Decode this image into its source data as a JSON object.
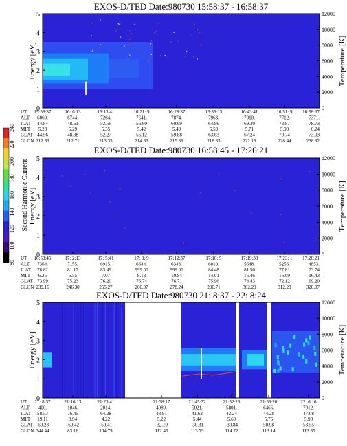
{
  "chart_data": [
    {
      "type": "heatmap",
      "title": "EXOS-D/TED   Date:980730   15:58:37 - 16:58:37",
      "ylabel": "Energy [eV]",
      "y2label": "Temperature [K]",
      "ylim": [
        0,
        5
      ],
      "y2lim": [
        0,
        12000
      ],
      "yticks": [
        "0",
        "1",
        "2",
        "3",
        "4",
        "5"
      ],
      "y2ticks": [
        "0",
        "2000",
        "4000",
        "6000",
        "8000",
        "10000",
        "12000"
      ],
      "orbit_rows": [
        "UT",
        "ALT",
        "ILAT",
        "MLT",
        "GLAT",
        "GLON"
      ],
      "orbit_columns": [
        [
          "15:58:37",
          "6069.",
          "44.84",
          "5.23",
          "44.56",
          "212.39"
        ],
        [
          "16: 6:13",
          "6744.",
          "48.61",
          "5.29",
          "48.38",
          "212.71"
        ],
        [
          "16:13:41",
          "7264.",
          "52.56",
          "5.35",
          "52.27",
          "213.33"
        ],
        [
          "16:21: 9",
          "7641.",
          "56.60",
          "5.42",
          "56.12",
          "214.33"
        ],
        [
          "16:28:37",
          "7874.",
          "60.69",
          "5.49",
          "59.88",
          "215.89"
        ],
        [
          "16:36:13",
          "7963.",
          "64.96",
          "5.59",
          "63.63",
          "218.35"
        ],
        [
          "16:43:41",
          "7910.",
          "69.30",
          "5.71",
          "67.24",
          "222.19"
        ],
        [
          "16:51: 9",
          "7712.",
          "73.87",
          "5.90",
          "70.74",
          "228.44"
        ],
        [
          "16:58:37",
          "7371.",
          "78.73",
          "6.24",
          "73.93",
          "238.92"
        ]
      ]
    },
    {
      "type": "heatmap",
      "title": "EXOS-D/TED   Date:980730   16:58:45 - 17:26:21",
      "ylabel": "Energy [eV]",
      "y2label": "Temperature [K]",
      "ylim": [
        0,
        5
      ],
      "y2lim": [
        0,
        12000
      ],
      "yticks": [
        "0",
        "1",
        "2",
        "3",
        "4",
        "5"
      ],
      "y2ticks": [
        "0",
        "2000",
        "4000",
        "6000",
        "8000",
        "10000",
        "12000"
      ],
      "orbit_rows": [
        "UT",
        "ALT",
        "ILAT",
        "MLT",
        "GLAT",
        "GLON"
      ],
      "orbit_columns": [
        [
          "16:58:45",
          "7364.",
          "78.82",
          "6.25",
          "73.99",
          "239.16"
        ],
        [
          "17: 2:13",
          "7155.",
          "81.17",
          "6.55",
          "75.23",
          "246.30"
        ],
        [
          "17: 5:41",
          "6915.",
          "83.49",
          "7.07",
          "76.20",
          "255.27"
        ],
        [
          "17: 9: 9",
          "6644.",
          "999.00",
          "8.18",
          "76.74",
          "266.07"
        ],
        [
          "17:12:37",
          "6343.",
          "999.00",
          "10.84",
          "76.71",
          "278.24"
        ],
        [
          "17:16: 5",
          "6010.",
          "84.48",
          "14.01",
          "75.96",
          "290.71"
        ],
        [
          "17:19:33",
          "5648.",
          "81.50",
          "15.46",
          "74.43",
          "302.29"
        ],
        [
          "17:23: 1",
          "5256.",
          "77.81",
          "16.09",
          "72.12",
          "312.23"
        ],
        [
          "17:26:21",
          "4853.",
          "73.74",
          "16.43",
          "69.20",
          "320.07"
        ]
      ]
    },
    {
      "type": "heatmap",
      "title": "EXOS-D/TED   Date:980730  21: 8:37 - 22: 8:24",
      "ylabel": "Energy [eV]",
      "y2label": "Temperature [K]",
      "ylim": [
        0,
        5
      ],
      "y2lim": [
        0,
        12000
      ],
      "yticks": [
        "0",
        "1",
        "2",
        "3",
        "4",
        "5"
      ],
      "y2ticks": [
        "0",
        "2000",
        "4000",
        "6000",
        "8000",
        "10000",
        "12000"
      ],
      "orbit_rows": [
        "UT",
        "ALT",
        "ILAT",
        "MLT",
        "GLAT",
        "GLON"
      ],
      "orbit_columns": [
        [
          "21: 8:37",
          "400.",
          "58.53",
          "19.11",
          "-69.23",
          "344.44"
        ],
        [
          "21:16:13",
          "1046.",
          "76.45",
          "0.94",
          "-69.42",
          "83.16"
        ],
        [
          "21:23:41",
          "2014.",
          "64.28",
          "4.22",
          "-50.41",
          "104.79"
        ],
        [
          "21:38:17",
          "4089.",
          "43.91",
          "5.22",
          "-32.19",
          "112.45"
        ],
        [
          "21:45:32",
          "5021.",
          "41.62",
          "5.44",
          "-30.31",
          "113.79"
        ],
        [
          "21:52:26",
          "5801.",
          "42.24",
          "5.60",
          "-30.84",
          "114.72"
        ],
        [
          "21:59:20",
          "6466.",
          "44.28",
          "5.75",
          "50.98",
          "113.14"
        ],
        [
          "22: 6:16",
          "7012.",
          "47.08",
          "5.90",
          "53.55",
          "113.85"
        ]
      ]
    }
  ],
  "colorbar": {
    "label": "Second Harmonic Current",
    "ticks": [
      "80",
      "100",
      "120",
      "140",
      "160",
      "180",
      "200",
      "220",
      "240"
    ]
  }
}
